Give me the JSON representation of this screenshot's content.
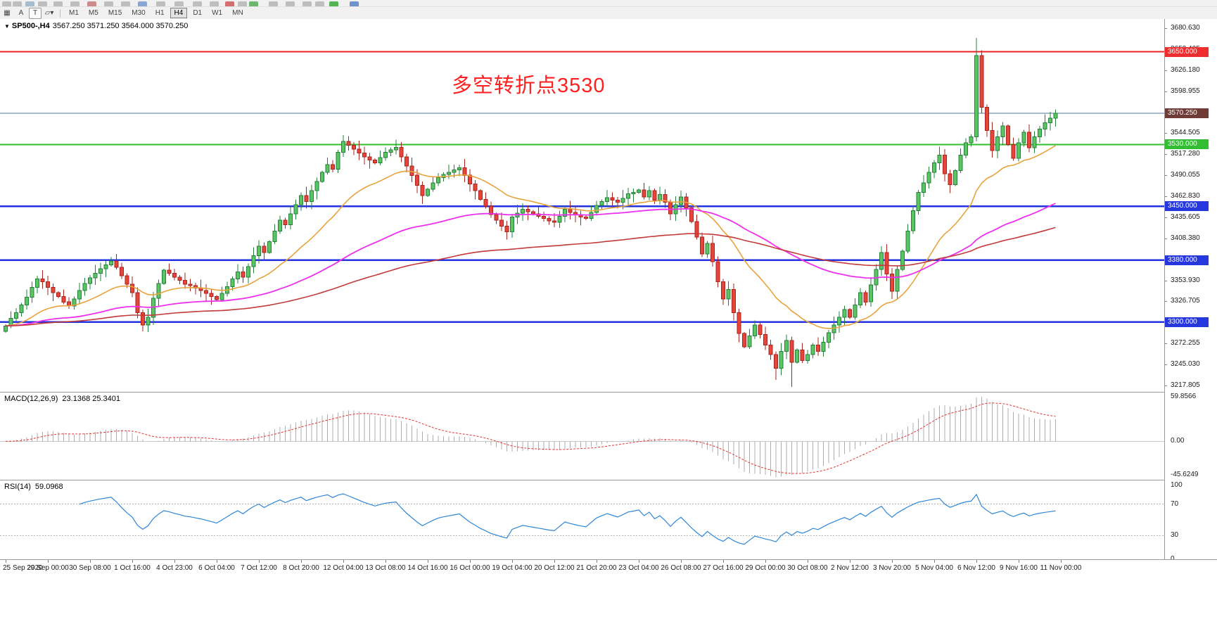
{
  "icons": {
    "windows": "▦",
    "shape": "▱",
    "caret": "▾",
    "collapse": "▼"
  },
  "toolbar": {
    "cursor_label": "A",
    "text_label": "T",
    "timeframes": [
      "M1",
      "M5",
      "M15",
      "M30",
      "H1",
      "H4",
      "D1",
      "W1",
      "MN"
    ],
    "active_timeframe": "H4",
    "clipped_icons": [
      {
        "x": 3,
        "color": "#b8b8b8"
      },
      {
        "x": 18,
        "color": "#b8b8b8"
      },
      {
        "x": 36,
        "color": "#9fb6c9"
      },
      {
        "x": 54,
        "color": "#b8b8b8"
      },
      {
        "x": 76,
        "color": "#b8b8b8"
      },
      {
        "x": 100,
        "color": "#b8b8b8"
      },
      {
        "x": 124,
        "color": "#c97f7f"
      },
      {
        "x": 148,
        "color": "#b8b8b8"
      },
      {
        "x": 172,
        "color": "#b8b8b8"
      },
      {
        "x": 196,
        "color": "#7e9ecf"
      },
      {
        "x": 222,
        "color": "#b8b8b8"
      },
      {
        "x": 248,
        "color": "#b8b8b8"
      },
      {
        "x": 274,
        "color": "#b8b8b8"
      },
      {
        "x": 298,
        "color": "#b8b8b8"
      },
      {
        "x": 320,
        "color": "#d06060"
      },
      {
        "x": 338,
        "color": "#b8b8b8"
      },
      {
        "x": 354,
        "color": "#60b060"
      },
      {
        "x": 382,
        "color": "#b8b8b8"
      },
      {
        "x": 406,
        "color": "#b8b8b8"
      },
      {
        "x": 430,
        "color": "#b8b8b8"
      },
      {
        "x": 448,
        "color": "#b8b8b8"
      },
      {
        "x": 468,
        "color": "#3fae3f"
      },
      {
        "x": 497,
        "color": "#5f87c9"
      }
    ]
  },
  "chart_header": {
    "symbol": "SP500-,H4",
    "ohlc": "3567.250 3571.250 3564.000 3570.250"
  },
  "annotation": {
    "text": "多空转折点3530",
    "color": "#ff1f1f"
  },
  "current_price": {
    "value": 3570.25,
    "label": "3570.250",
    "box_color": "#6e3b36",
    "line_color": "#54749b"
  },
  "chart_data": {
    "type": "candlestick",
    "symbol": "SP500-",
    "timeframe": "H4",
    "ylim": [
      3217.805,
      3680.63
    ],
    "bars_per_label": 8,
    "x_labels": [
      "25 Sep 2020",
      "29 Sep 00:00",
      "30 Sep 08:00",
      "1 Oct 16:00",
      "4 Oct 23:00",
      "6 Oct 04:00",
      "7 Oct 12:00",
      "8 Oct 20:00",
      "12 Oct 04:00",
      "13 Oct 08:00",
      "14 Oct 16:00",
      "16 Oct 00:00",
      "19 Oct 04:00",
      "20 Oct 12:00",
      "21 Oct 20:00",
      "23 Oct 04:00",
      "26 Oct 08:00",
      "27 Oct 16:00",
      "29 Oct 00:00",
      "30 Oct 08:00",
      "2 Nov 12:00",
      "3 Nov 20:00",
      "5 Nov 04:00",
      "6 Nov 12:00",
      "9 Nov 16:00",
      "11 Nov 00:00"
    ],
    "first_open": 3288,
    "closes": [
      3295,
      3305,
      3312,
      3322,
      3332,
      3345,
      3356,
      3352,
      3345,
      3338,
      3333,
      3326,
      3321,
      3330,
      3341,
      3350,
      3357,
      3363,
      3369,
      3374,
      3379,
      3371,
      3360,
      3349,
      3338,
      3312,
      3296,
      3306,
      3331,
      3350,
      3367,
      3363,
      3358,
      3354,
      3349,
      3347,
      3344,
      3341,
      3337,
      3333,
      3329,
      3337,
      3346,
      3356,
      3365,
      3358,
      3372,
      3386,
      3398,
      3390,
      3404,
      3418,
      3432,
      3426,
      3440,
      3452,
      3464,
      3456,
      3470,
      3482,
      3494,
      3504,
      3498,
      3520,
      3534,
      3529,
      3524,
      3519,
      3514,
      3510,
      3506,
      3513,
      3520,
      3523,
      3526,
      3514,
      3502,
      3490,
      3477,
      3464,
      3472,
      3480,
      3487,
      3491,
      3494,
      3497,
      3500,
      3490,
      3479,
      3470,
      3459,
      3450,
      3439,
      3432,
      3424,
      3417,
      3436,
      3441,
      3446,
      3443,
      3440,
      3437,
      3434,
      3431,
      3429,
      3437,
      3446,
      3442,
      3439,
      3436,
      3434,
      3442,
      3451,
      3456,
      3461,
      3458,
      3455,
      3460,
      3466,
      3468,
      3471,
      3462,
      3470,
      3458,
      3465,
      3455,
      3440,
      3452,
      3462,
      3448,
      3430,
      3410,
      3388,
      3402,
      3378,
      3352,
      3330,
      3342,
      3312,
      3285,
      3268,
      3282,
      3296,
      3284,
      3270,
      3258,
      3240,
      3262,
      3276,
      3248,
      3264,
      3250,
      3258,
      3270,
      3262,
      3274,
      3286,
      3296,
      3306,
      3316,
      3306,
      3322,
      3338,
      3326,
      3348,
      3368,
      3390,
      3362,
      3340,
      3368,
      3392,
      3418,
      3444,
      3468,
      3480,
      3494,
      3506,
      3516,
      3492,
      3478,
      3496,
      3516,
      3532,
      3540,
      3645,
      3578,
      3548,
      3522,
      3540,
      3554,
      3530,
      3512,
      3532,
      3546,
      3526,
      3540,
      3550,
      3558,
      3564,
      3570.25
    ],
    "overrides": {
      "20": {
        "high": 3384
      },
      "26": {
        "low": 3288
      },
      "64": {
        "high": 3542
      },
      "95": {
        "low": 3407
      },
      "146": {
        "low": 3225
      },
      "149": {
        "low": 3216.155
      },
      "166": {
        "high": 3398
      },
      "184": {
        "high": 3668
      }
    },
    "wick_base": 2,
    "candle_colors": {
      "up": "#5bc463",
      "up_border": "#23803a",
      "down": "#e6453c",
      "down_border": "#a8241d"
    },
    "price_axis": [
      {
        "v": 3680.63,
        "t": "3680.630"
      },
      {
        "v": 3653.405,
        "t": "3653.405"
      },
      {
        "v": 3626.18,
        "t": "3626.180"
      },
      {
        "v": 3598.955,
        "t": "3598.955"
      },
      {
        "v": 3571.73,
        "t": "3571.730"
      },
      {
        "v": 3544.505,
        "t": "3544.505"
      },
      {
        "v": 3517.28,
        "t": "3517.280"
      },
      {
        "v": 3490.055,
        "t": "3490.055"
      },
      {
        "v": 3462.83,
        "t": "3462.830"
      },
      {
        "v": 3435.605,
        "t": "3435.605"
      },
      {
        "v": 3408.38,
        "t": "3408.380"
      },
      {
        "v": 3381.155,
        "t": "3381.155"
      },
      {
        "v": 3353.93,
        "t": "3353.930"
      },
      {
        "v": 3326.705,
        "t": "3326.705"
      },
      {
        "v": 3299.48,
        "t": "3299.480"
      },
      {
        "v": 3272.255,
        "t": "3272.255"
      },
      {
        "v": 3245.03,
        "t": "3245.030"
      },
      {
        "v": 3217.805,
        "t": "3217.805"
      }
    ],
    "hlines": [
      {
        "price": 3650.0,
        "label": "3650.000",
        "color": "#f02020",
        "box": "#ee2e2e",
        "width": 2
      },
      {
        "price": 3530.0,
        "label": "3530.000",
        "color": "#2fbe2f",
        "box": "#33bd33",
        "width": 2
      },
      {
        "price": 3450.0,
        "label": "3450.000",
        "color": "#2333e0",
        "box": "#2638dd",
        "width": 2.5
      },
      {
        "price": 3380.0,
        "label": "3380.000",
        "color": "#2333e0",
        "box": "#2638dd",
        "width": 2.5
      },
      {
        "price": 3300.0,
        "label": "3300.000",
        "color": "#2333e0",
        "box": "#2638dd",
        "width": 2.5
      }
    ],
    "moving_averages": [
      {
        "name": "ma-fast",
        "period": 21,
        "color": "#e8a33d",
        "width": 1.6
      },
      {
        "name": "ma-mid",
        "period": 72,
        "color": "#ee30ee",
        "width": 1.8
      },
      {
        "name": "ma-slow",
        "period": 150,
        "color": "#c23a3a",
        "width": 1.6
      }
    ],
    "indicators": {
      "macd": {
        "label": "MACD(12,26,9)",
        "values_text": "23.1368 25.3401",
        "fast": 12,
        "slow": 26,
        "signal": 9,
        "scale": {
          "max": 66,
          "min": -52
        },
        "axis_labels": [
          {
            "v": 59.8566,
            "t": "59.8566"
          },
          {
            "v": 0,
            "t": "0.00"
          },
          {
            "v": -45.6249,
            "t": "-45.6249"
          }
        ],
        "histogram_color": "#adadad",
        "signal_color": "#e63333",
        "zero_color": "#c8c8c8"
      },
      "rsi": {
        "label": "RSI(14)",
        "value_text": "59.0968",
        "period": 14,
        "scale": {
          "max": 100,
          "min": 0
        },
        "levels": [
          70,
          30
        ],
        "axis_labels": [
          {
            "v": 100,
            "t": "100"
          },
          {
            "v": 70,
            "t": "70"
          },
          {
            "v": 30,
            "t": "30"
          },
          {
            "v": 0,
            "t": "0"
          }
        ],
        "color": "#2f86d6",
        "level_color": "#b8b8b8"
      }
    }
  }
}
